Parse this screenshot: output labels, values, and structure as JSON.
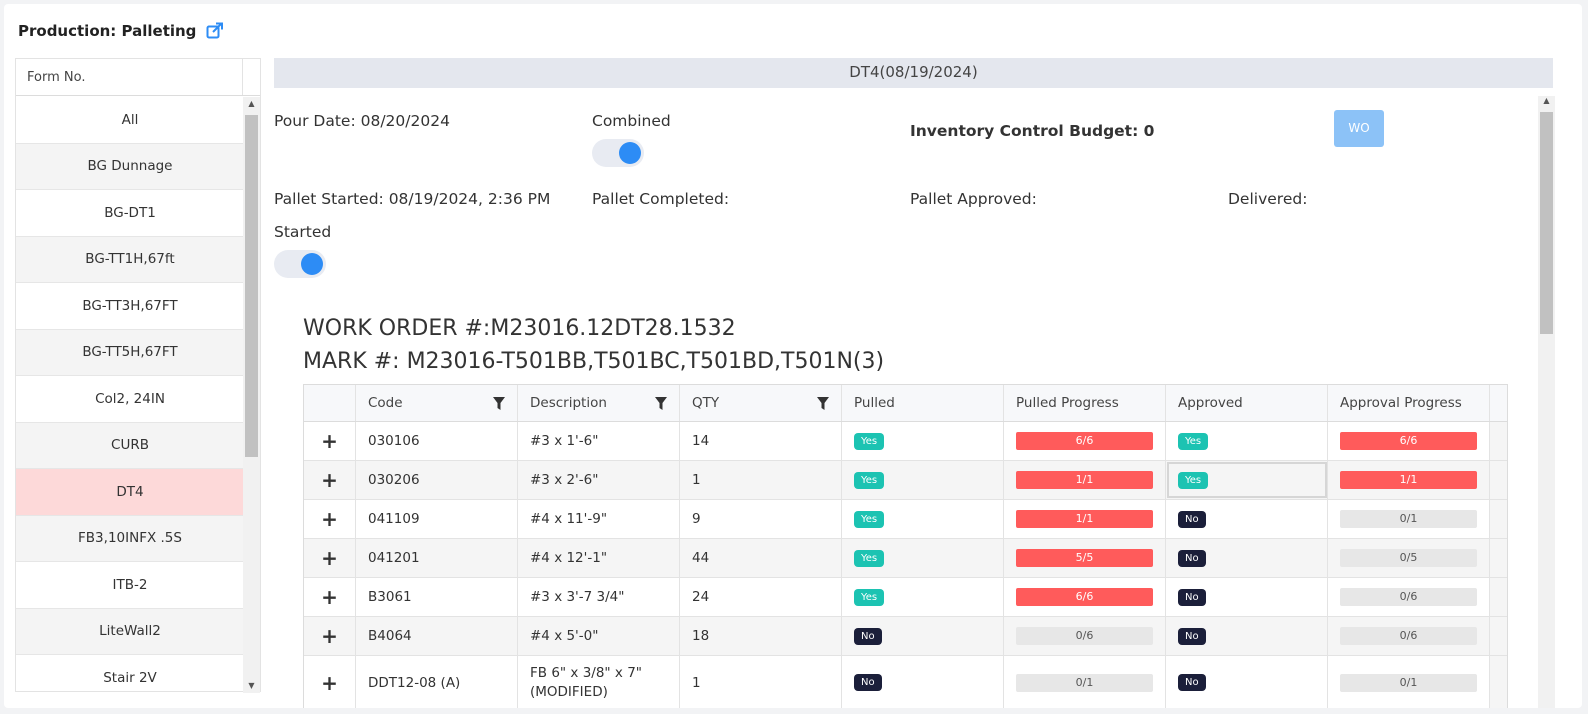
{
  "page": {
    "title": "Production: Palleting",
    "icon": "external-link-icon"
  },
  "sidebar": {
    "header": "Form No.",
    "items": [
      "All",
      "BG Dunnage",
      "BG-DT1",
      "BG-TT1H,67ft",
      "BG-TT3H,67FT",
      "BG-TT5H,67FT",
      "Col2, 24IN",
      "CURB",
      "DT4",
      "FB3,10INFX .5S",
      "ITB-2",
      "LiteWall2",
      "Stair 2V"
    ],
    "selected": "DT4"
  },
  "main": {
    "header": "DT4(08/19/2024)",
    "pour_date": "Pour Date: 08/20/2024",
    "combined_label": "Combined",
    "combined_on": true,
    "inventory_budget": "Inventory Control Budget: 0",
    "wo_button": "WO",
    "pallet_started": "Pallet Started: 08/19/2024, 2:36 PM",
    "pallet_completed": "Pallet Completed:",
    "pallet_approved": "Pallet Approved:",
    "delivered": "Delivered:",
    "started_label": "Started",
    "started_on": true,
    "work_order": "WORK ORDER #:M23016.12DT28.1532",
    "mark": "MARK #: M23016-T501BB,T501BC,T501BD,T501N(3)"
  },
  "table": {
    "columns": [
      "Code",
      "Description",
      "QTY",
      "Pulled",
      "Pulled Progress",
      "Approved",
      "Approval Progress"
    ],
    "rows": [
      {
        "expand": "+",
        "code": "030106",
        "description": "#3 x 1'-6\"",
        "qty": "14",
        "pulled": "Yes",
        "pulled_progress": "6/6",
        "approved": "Yes",
        "approval_progress": "6/6"
      },
      {
        "expand": "+",
        "code": "030206",
        "description": "#3 x 2'-6\"",
        "qty": "1",
        "pulled": "Yes",
        "pulled_progress": "1/1",
        "approved": "Yes",
        "approval_progress": "1/1"
      },
      {
        "expand": "+",
        "code": "041109",
        "description": "#4 x 11'-9\"",
        "qty": "9",
        "pulled": "Yes",
        "pulled_progress": "1/1",
        "approved": "No",
        "approval_progress": "0/1"
      },
      {
        "expand": "+",
        "code": "041201",
        "description": "#4 x 12'-1\"",
        "qty": "44",
        "pulled": "Yes",
        "pulled_progress": "5/5",
        "approved": "No",
        "approval_progress": "0/5"
      },
      {
        "expand": "+",
        "code": "B3061",
        "description": "#3 x 3'-7 3/4\"",
        "qty": "24",
        "pulled": "Yes",
        "pulled_progress": "6/6",
        "approved": "No",
        "approval_progress": "0/6"
      },
      {
        "expand": "+",
        "code": "B4064",
        "description": "#4 x 5'-0\"",
        "qty": "18",
        "pulled": "No",
        "pulled_progress": "0/6",
        "approved": "No",
        "approval_progress": "0/6"
      },
      {
        "expand": "+",
        "code": "DDT12-08 (A)",
        "description": "FB 6\" x 3/8\" x 7\" (MODIFIED)",
        "qty": "1",
        "pulled": "No",
        "pulled_progress": "0/1",
        "approved": "No",
        "approval_progress": "0/1"
      }
    ]
  },
  "colors": {
    "accent": "#2d8cf5",
    "yes": "#1cc3b2",
    "no": "#1b1f3a",
    "progress_done": "#ff5b5b",
    "progress_empty": "#e7e7e7",
    "selected_row": "#fdd9d9"
  }
}
